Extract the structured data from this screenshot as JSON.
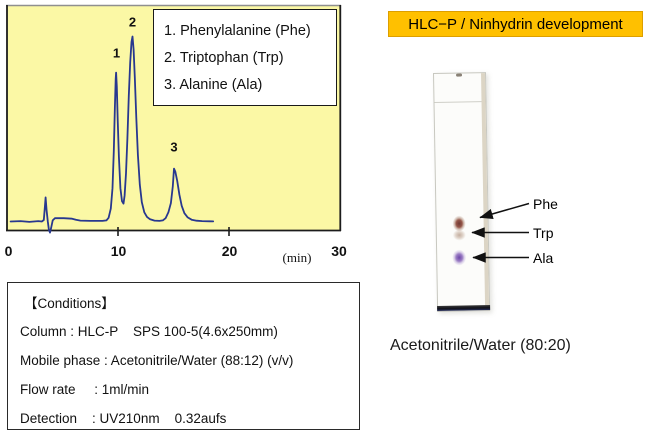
{
  "chart_data": {
    "type": "line",
    "title": "",
    "xlabel": "(min)",
    "ylabel": "",
    "x_range": [
      0,
      30
    ],
    "x_ticks": [
      0,
      10,
      20,
      30
    ],
    "grid": false,
    "legend_position": "top-right-inset",
    "legend": [
      "1. Phenylalanine (Phe)",
      "2. Triptophan (Trp)",
      "3. Alanine (Ala)"
    ],
    "peaks": [
      {
        "marker": "1",
        "name": "Phenylalanine (Phe)",
        "retention_min": 9.8,
        "rel_height_pct": 80
      },
      {
        "marker": "2",
        "name": "Triptophan (Trp)",
        "retention_min": 11.3,
        "rel_height_pct": 100
      },
      {
        "marker": "3",
        "name": "Alanine (Ala)",
        "retention_min": 15.1,
        "rel_height_pct": 29
      }
    ],
    "trace_min_pct": [
      [
        0.3,
        0
      ],
      [
        1.2,
        0.2
      ],
      [
        2.0,
        -0.2
      ],
      [
        2.8,
        0.2
      ],
      [
        3.12,
        0
      ],
      [
        3.3,
        0.8
      ],
      [
        3.4,
        8
      ],
      [
        3.46,
        13
      ],
      [
        3.55,
        6
      ],
      [
        3.66,
        0
      ],
      [
        3.76,
        -4.5
      ],
      [
        3.86,
        -6
      ],
      [
        3.96,
        -3.5
      ],
      [
        4.1,
        0.6
      ],
      [
        4.3,
        1.8
      ],
      [
        5.1,
        1.8
      ],
      [
        5.85,
        1.5
      ],
      [
        6.2,
        0.9
      ],
      [
        6.6,
        0.5
      ],
      [
        7.5,
        0.3
      ],
      [
        8.6,
        0.3
      ],
      [
        8.95,
        0.6
      ],
      [
        9.15,
        2
      ],
      [
        9.35,
        7
      ],
      [
        9.5,
        18
      ],
      [
        9.62,
        38
      ],
      [
        9.72,
        62
      ],
      [
        9.79,
        77
      ],
      [
        9.83,
        80.5
      ],
      [
        9.89,
        73
      ],
      [
        9.97,
        55
      ],
      [
        10.08,
        35
      ],
      [
        10.22,
        18
      ],
      [
        10.36,
        11
      ],
      [
        10.5,
        9.7
      ],
      [
        10.6,
        14
      ],
      [
        10.72,
        26
      ],
      [
        10.85,
        45
      ],
      [
        10.98,
        68
      ],
      [
        11.1,
        86
      ],
      [
        11.22,
        97
      ],
      [
        11.31,
        100
      ],
      [
        11.41,
        93
      ],
      [
        11.52,
        78
      ],
      [
        11.65,
        56
      ],
      [
        11.8,
        36
      ],
      [
        11.97,
        20
      ],
      [
        12.15,
        10.5
      ],
      [
        12.38,
        5
      ],
      [
        12.62,
        2.5
      ],
      [
        12.9,
        1.2
      ],
      [
        13.3,
        0.5
      ],
      [
        13.75,
        0.3
      ],
      [
        14.05,
        0.6
      ],
      [
        14.3,
        1.8
      ],
      [
        14.55,
        5
      ],
      [
        14.78,
        10
      ],
      [
        14.95,
        19
      ],
      [
        15.06,
        28.6
      ],
      [
        15.18,
        27
      ],
      [
        15.35,
        22
      ],
      [
        15.55,
        14.5
      ],
      [
        15.75,
        8.5
      ],
      [
        16.0,
        4.5
      ],
      [
        16.3,
        2.2
      ],
      [
        16.65,
        1.0
      ],
      [
        17.1,
        0.45
      ],
      [
        17.6,
        0.2
      ],
      [
        18.3,
        0.1
      ],
      [
        18.6,
        0.05
      ]
    ]
  },
  "conditions": {
    "title": "【Conditions】",
    "lines": [
      "Column : HLC-P    SPS 100-5(4.6x250mm)",
      "Mobile phase : Acetonitrile/Water (88:12) (v/v)",
      "Flow rate     : 1ml/min",
      "Detection    : UV210nm    0.32aufs"
    ]
  },
  "tlc": {
    "banner": "HLC−P / Ninhydrin development",
    "spot_labels": [
      "Phe",
      "Trp",
      "Ala"
    ],
    "spots": [
      {
        "name": "Phe",
        "color": "#7A4038"
      },
      {
        "name": "Trp",
        "color": "#B59580"
      },
      {
        "name": "Ala",
        "color": "#7A4FAE"
      }
    ],
    "caption": "Acetonitrile/Water (80:20)"
  },
  "colors": {
    "chart_bg": "#FBF8A5",
    "trace": "#28388F",
    "banner_bg": "#FFC000"
  }
}
